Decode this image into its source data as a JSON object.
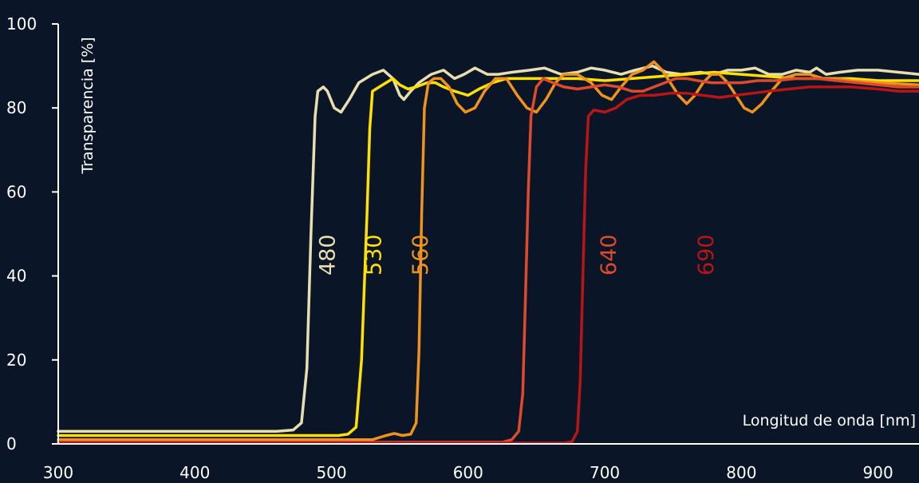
{
  "chart_data": {
    "type": "line",
    "xlabel": "Longitud de onda  [nm]",
    "ylabel": "Transparencia  [%]",
    "xlim": [
      300,
      930
    ],
    "ylim": [
      0,
      100
    ],
    "xticks": [
      300,
      400,
      500,
      600,
      700,
      800,
      900
    ],
    "yticks": [
      0,
      20,
      40,
      60,
      80,
      100
    ],
    "background": "#0a1628",
    "axis_color": "#ffffff",
    "series": [
      {
        "name": "480",
        "color": "#e7dfb0",
        "label_x": 497,
        "label_y": 45,
        "points": [
          [
            300,
            3
          ],
          [
            460,
            3
          ],
          [
            472,
            3.3
          ],
          [
            478,
            5
          ],
          [
            482,
            18
          ],
          [
            485,
            50
          ],
          [
            488,
            78
          ],
          [
            490,
            84
          ],
          [
            494,
            85
          ],
          [
            497,
            84
          ],
          [
            502,
            80
          ],
          [
            507,
            79
          ],
          [
            513,
            82
          ],
          [
            520,
            86
          ],
          [
            530,
            88
          ],
          [
            538,
            89
          ],
          [
            545,
            87
          ],
          [
            550,
            83
          ],
          [
            553,
            82
          ],
          [
            558,
            84
          ],
          [
            564,
            86
          ],
          [
            573,
            88
          ],
          [
            582,
            89
          ],
          [
            590,
            87
          ],
          [
            597,
            88
          ],
          [
            605,
            89.5
          ],
          [
            614,
            88
          ],
          [
            622,
            88
          ],
          [
            632,
            88.5
          ],
          [
            645,
            89
          ],
          [
            656,
            89.5
          ],
          [
            668,
            88
          ],
          [
            680,
            88.5
          ],
          [
            690,
            89.5
          ],
          [
            700,
            89
          ],
          [
            712,
            88
          ],
          [
            722,
            89
          ],
          [
            735,
            90
          ],
          [
            745,
            88.5
          ],
          [
            756,
            88
          ],
          [
            770,
            88.5
          ],
          [
            780,
            88
          ],
          [
            790,
            89
          ],
          [
            800,
            89
          ],
          [
            810,
            89.5
          ],
          [
            820,
            88
          ],
          [
            830,
            88
          ],
          [
            840,
            89
          ],
          [
            850,
            88.5
          ],
          [
            855,
            89.5
          ],
          [
            862,
            88
          ],
          [
            872,
            88.5
          ],
          [
            885,
            89
          ],
          [
            900,
            89
          ],
          [
            915,
            88.5
          ],
          [
            930,
            88
          ]
        ]
      },
      {
        "name": "530",
        "color": "#ffe000",
        "label_x": 531,
        "label_y": 45,
        "points": [
          [
            300,
            2
          ],
          [
            505,
            2
          ],
          [
            512,
            2.3
          ],
          [
            518,
            4
          ],
          [
            522,
            20
          ],
          [
            526,
            55
          ],
          [
            528,
            75
          ],
          [
            530,
            84
          ],
          [
            535,
            85
          ],
          [
            540,
            86
          ],
          [
            545,
            87
          ],
          [
            550,
            85.5
          ],
          [
            556,
            84.5
          ],
          [
            562,
            85
          ],
          [
            570,
            86
          ],
          [
            576,
            86
          ],
          [
            582,
            85
          ],
          [
            590,
            84
          ],
          [
            600,
            83
          ],
          [
            608,
            84.5
          ],
          [
            618,
            86
          ],
          [
            628,
            87
          ],
          [
            640,
            87
          ],
          [
            660,
            87
          ],
          [
            680,
            87
          ],
          [
            700,
            86.5
          ],
          [
            720,
            87
          ],
          [
            740,
            87.5
          ],
          [
            760,
            88
          ],
          [
            780,
            88.5
          ],
          [
            800,
            88
          ],
          [
            820,
            87.5
          ],
          [
            840,
            87
          ],
          [
            860,
            87
          ],
          [
            880,
            87
          ],
          [
            900,
            86.5
          ],
          [
            930,
            86.5
          ]
        ]
      },
      {
        "name": "560",
        "color": "#f0921e",
        "label_x": 565,
        "label_y": 45,
        "points": [
          [
            300,
            1
          ],
          [
            530,
            1
          ],
          [
            540,
            2
          ],
          [
            546,
            2.5
          ],
          [
            552,
            2
          ],
          [
            558,
            2.3
          ],
          [
            562,
            5
          ],
          [
            564,
            22
          ],
          [
            566,
            55
          ],
          [
            568,
            80
          ],
          [
            571,
            86
          ],
          [
            575,
            87
          ],
          [
            580,
            87
          ],
          [
            586,
            85
          ],
          [
            592,
            81
          ],
          [
            598,
            79
          ],
          [
            605,
            80
          ],
          [
            612,
            84
          ],
          [
            620,
            87
          ],
          [
            628,
            87
          ],
          [
            636,
            83
          ],
          [
            643,
            80
          ],
          [
            650,
            79
          ],
          [
            657,
            82
          ],
          [
            664,
            86
          ],
          [
            670,
            88
          ],
          [
            680,
            88
          ],
          [
            690,
            86
          ],
          [
            698,
            83
          ],
          [
            705,
            82
          ],
          [
            712,
            85
          ],
          [
            720,
            88
          ],
          [
            728,
            89
          ],
          [
            736,
            91
          ],
          [
            742,
            89
          ],
          [
            748,
            86
          ],
          [
            754,
            83
          ],
          [
            760,
            81
          ],
          [
            766,
            83
          ],
          [
            772,
            86
          ],
          [
            778,
            88
          ],
          [
            784,
            88
          ],
          [
            790,
            86
          ],
          [
            796,
            83
          ],
          [
            802,
            80
          ],
          [
            808,
            79
          ],
          [
            815,
            81
          ],
          [
            822,
            84
          ],
          [
            830,
            87
          ],
          [
            840,
            88
          ],
          [
            850,
            88
          ],
          [
            860,
            87
          ],
          [
            870,
            87
          ],
          [
            880,
            86.5
          ],
          [
            900,
            86
          ],
          [
            930,
            85.5
          ]
        ]
      },
      {
        "name": "640",
        "color": "#de4a2b",
        "label_x": 703,
        "label_y": 45,
        "points": [
          [
            300,
            0.4
          ],
          [
            625,
            0.4
          ],
          [
            632,
            1
          ],
          [
            637,
            3
          ],
          [
            640,
            12
          ],
          [
            642,
            35
          ],
          [
            644,
            60
          ],
          [
            646,
            78
          ],
          [
            650,
            85
          ],
          [
            655,
            87
          ],
          [
            662,
            86
          ],
          [
            670,
            85
          ],
          [
            680,
            84.5
          ],
          [
            690,
            85
          ],
          [
            700,
            85.5
          ],
          [
            710,
            85
          ],
          [
            720,
            84
          ],
          [
            728,
            84
          ],
          [
            736,
            85
          ],
          [
            744,
            86
          ],
          [
            752,
            87
          ],
          [
            760,
            87
          ],
          [
            768,
            86.5
          ],
          [
            778,
            86
          ],
          [
            788,
            86
          ],
          [
            800,
            86
          ],
          [
            812,
            86.5
          ],
          [
            825,
            86.5
          ],
          [
            840,
            87
          ],
          [
            855,
            87
          ],
          [
            870,
            86.5
          ],
          [
            885,
            86
          ],
          [
            900,
            85.5
          ],
          [
            915,
            85
          ],
          [
            930,
            85
          ]
        ]
      },
      {
        "name": "690",
        "color": "#b81515",
        "label_x": 774,
        "label_y": 45,
        "points": [
          [
            300,
            0.2
          ],
          [
            670,
            0.2
          ],
          [
            676,
            0.5
          ],
          [
            680,
            3
          ],
          [
            682,
            15
          ],
          [
            684,
            40
          ],
          [
            686,
            65
          ],
          [
            688,
            78
          ],
          [
            692,
            79.5
          ],
          [
            700,
            79
          ],
          [
            708,
            80
          ],
          [
            716,
            82
          ],
          [
            726,
            83
          ],
          [
            736,
            83
          ],
          [
            748,
            83.5
          ],
          [
            760,
            83.5
          ],
          [
            772,
            83
          ],
          [
            784,
            82.5
          ],
          [
            796,
            83
          ],
          [
            808,
            83.5
          ],
          [
            820,
            84
          ],
          [
            835,
            84.5
          ],
          [
            850,
            85
          ],
          [
            865,
            85
          ],
          [
            880,
            85
          ],
          [
            900,
            84.5
          ],
          [
            915,
            84
          ],
          [
            930,
            84
          ]
        ]
      }
    ]
  }
}
